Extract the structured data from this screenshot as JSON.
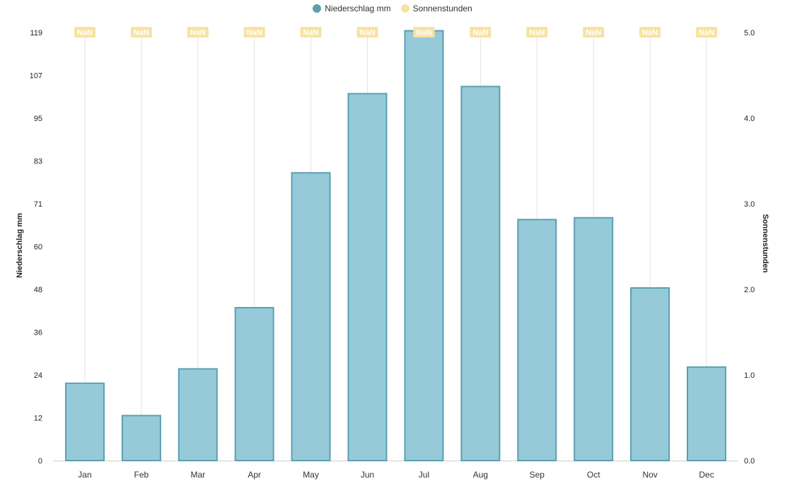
{
  "chart_data": {
    "type": "bar",
    "categories": [
      "Jan",
      "Feb",
      "Mar",
      "Apr",
      "May",
      "Jun",
      "Jul",
      "Aug",
      "Sep",
      "Oct",
      "Nov",
      "Dec"
    ],
    "series": [
      {
        "name": "Niederschlag mm",
        "axis": "left",
        "type": "bar",
        "values": [
          21.5,
          12.5,
          25.5,
          42.5,
          80,
          102,
          119.5,
          104,
          67,
          67.5,
          48,
          26
        ]
      },
      {
        "name": "Sonnenstunden",
        "axis": "right",
        "type": "line",
        "values": [
          null,
          null,
          null,
          null,
          null,
          null,
          null,
          null,
          null,
          null,
          null,
          null
        ],
        "point_labels": [
          "NaN",
          "NaN",
          "NaN",
          "NaN",
          "NaN",
          "NaN",
          "NaN",
          "NaN",
          "NaN",
          "NaN",
          "NaN",
          "NaN"
        ]
      }
    ],
    "y_left": {
      "label": "Niederschlag mm",
      "ticks": [
        "0",
        "12",
        "24",
        "36",
        "48",
        "60",
        "71",
        "83",
        "95",
        "107",
        "119"
      ],
      "ylim": [
        0,
        119
      ]
    },
    "y_right": {
      "label": "Sonnenstunden",
      "ticks": [
        "0.0",
        "1.0",
        "2.0",
        "3.0",
        "4.0",
        "5.0"
      ],
      "ylim": [
        0,
        5
      ]
    },
    "colors": {
      "bar_fill": "#96cad9",
      "bar_stroke": "#5a9fb2",
      "legend_niederschlag": "#5a9fb2",
      "legend_sonnenstunden": "#f7e3a1",
      "nan_label_bg": "#f7e3a1",
      "gridline": "#e3e3e3"
    },
    "grid": "vertical",
    "legend_position": "top-center"
  }
}
